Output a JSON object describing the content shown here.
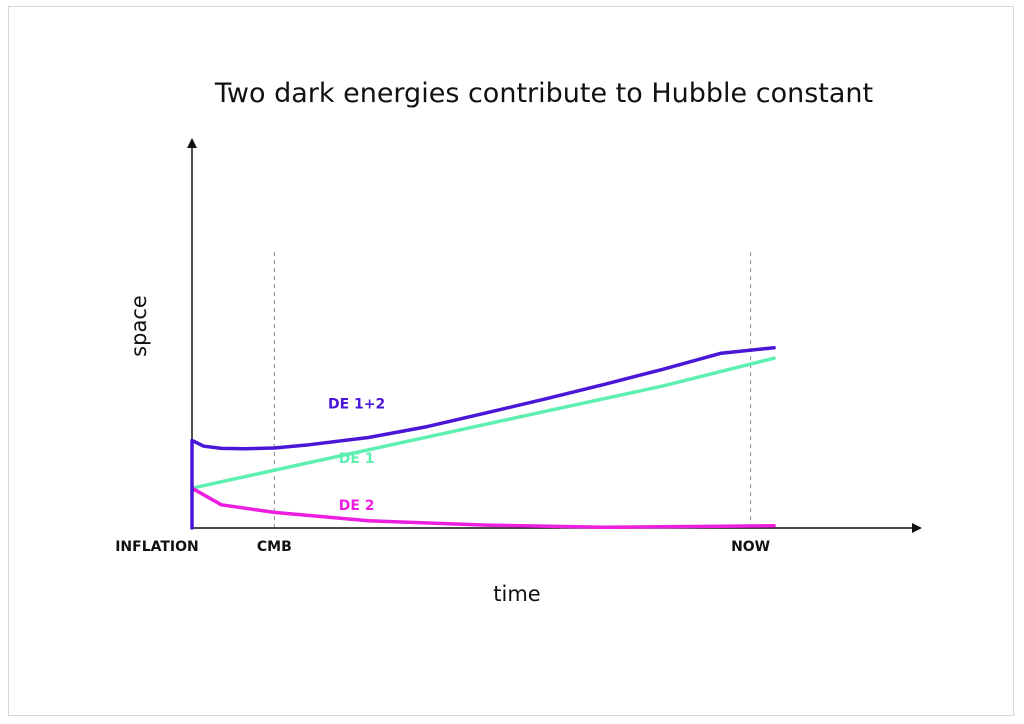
{
  "chart_data": {
    "type": "line",
    "title": "Two dark energies contribute to Hubble constant",
    "xlabel": "time",
    "ylabel": "space",
    "xlim": [
      0,
      100
    ],
    "ylim": [
      0,
      100
    ],
    "grid": false,
    "x_ticks": [
      {
        "label": "INFLATION",
        "x": 0
      },
      {
        "label": "CMB",
        "x": 14
      },
      {
        "label": "NOW",
        "x": 95
      }
    ],
    "reference_lines": [
      {
        "name": "CMB",
        "x": 14
      },
      {
        "name": "NOW",
        "x": 95
      }
    ],
    "series": [
      {
        "name": "DE 1+2",
        "color": "#4a16d8",
        "x": [
          0,
          0,
          2,
          5,
          9,
          14,
          20,
          30,
          40,
          50,
          60,
          70,
          80,
          90,
          99
        ],
        "y": [
          0,
          24.2,
          22.6,
          22.0,
          21.9,
          22.1,
          23.0,
          25.0,
          28.0,
          31.8,
          35.6,
          39.6,
          43.8,
          48.3,
          49.8
        ]
      },
      {
        "name": "DE 1",
        "color": "#5ef0b0",
        "x": [
          0,
          20,
          40,
          60,
          80,
          99
        ],
        "y": [
          11.0,
          18.1,
          25.1,
          32.2,
          39.2,
          46.9
        ]
      },
      {
        "name": "DE 2",
        "color": "#ee1ee0",
        "x": [
          0,
          5,
          14,
          30,
          50,
          70,
          90,
          99
        ],
        "y": [
          11.0,
          6.4,
          4.3,
          2.0,
          0.8,
          0.2,
          0.5,
          0.6
        ]
      }
    ],
    "annotations": [
      {
        "text": "DE 1+2",
        "series": "DE 1+2",
        "x": 28,
        "y": 33
      },
      {
        "text": "DE 1",
        "series": "DE 1",
        "x": 28,
        "y": 18
      },
      {
        "text": "DE 2",
        "series": "DE 2",
        "x": 28,
        "y": 5
      }
    ]
  }
}
